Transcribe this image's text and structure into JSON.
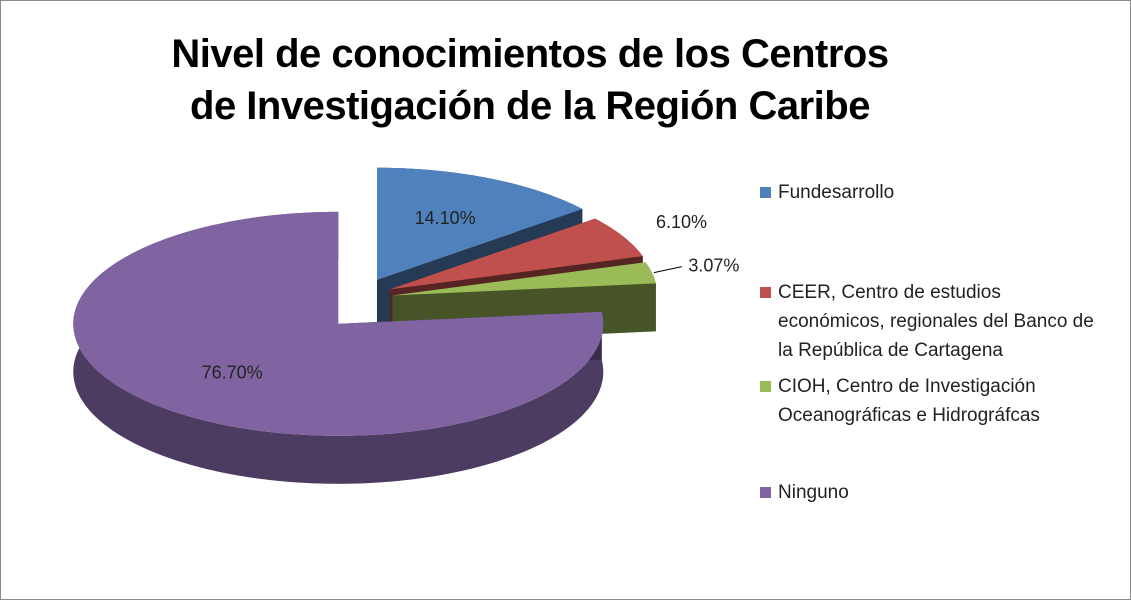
{
  "chart_data": {
    "type": "pie3d",
    "title": "Nivel de conocimientos de los Centros de Investigación de la Región Caribe",
    "categories": [
      "Fundesarrollo",
      "CEER, Centro de estudios económicos, regionales del Banco de la República de Cartagena",
      "CIOH,  Centro de Investigación Oceanográficas e Hidrográfcas",
      "Ninguno"
    ],
    "values": [
      14.1,
      6.1,
      3.07,
      76.7
    ],
    "value_labels": [
      "14.10%",
      "6.10%",
      "3.07%",
      "76.70%"
    ],
    "colors": [
      "#4f81bd",
      "#c0504d",
      "#9bbb59",
      "#8064a2"
    ],
    "legend": "right"
  }
}
